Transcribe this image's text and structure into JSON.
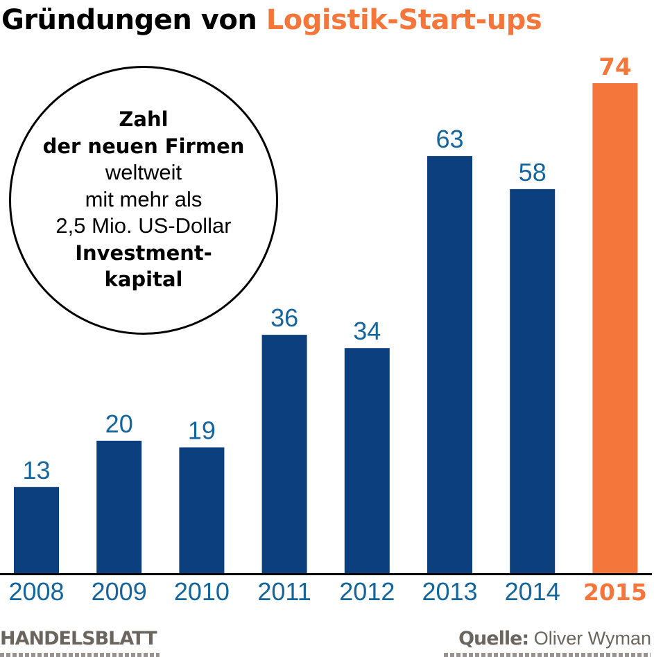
{
  "title": {
    "part1": "Gründungen von",
    "part2": "Logistik-Start-ups"
  },
  "callout": {
    "lines": [
      {
        "text": "Zahl",
        "bold": true
      },
      {
        "text": "der neuen Firmen",
        "bold": true
      },
      {
        "text": "weltweit",
        "bold": false
      },
      {
        "text": "mit mehr als",
        "bold": false
      },
      {
        "text": "2,5 Mio. US-Dollar",
        "bold": false
      },
      {
        "text": "Investment-",
        "bold": true
      },
      {
        "text": "kapital",
        "bold": true
      }
    ]
  },
  "footer": {
    "publisher": "HANDELSBLATT",
    "source_label": "Quelle:",
    "source_value": "Oliver Wyman"
  },
  "colors": {
    "bar_default": "#0b3f7e",
    "bar_highlight": "#f5763a",
    "label_default": "#14659c",
    "label_highlight": "#f5763a",
    "axis": "#000000"
  },
  "chart_data": {
    "type": "bar",
    "title": "Gründungen von Logistik-Start-ups",
    "xlabel": "",
    "ylabel": "",
    "categories": [
      "2008",
      "2009",
      "2010",
      "2011",
      "2012",
      "2013",
      "2014",
      "2015"
    ],
    "values": [
      13,
      20,
      19,
      36,
      34,
      63,
      58,
      74
    ],
    "highlight": [
      "2015"
    ],
    "ylim": [
      0,
      74
    ],
    "grid": false,
    "data_labels": true,
    "annotation": "Zahl der neuen Firmen weltweit mit mehr als 2,5 Mio. US-Dollar Investmentkapital"
  }
}
